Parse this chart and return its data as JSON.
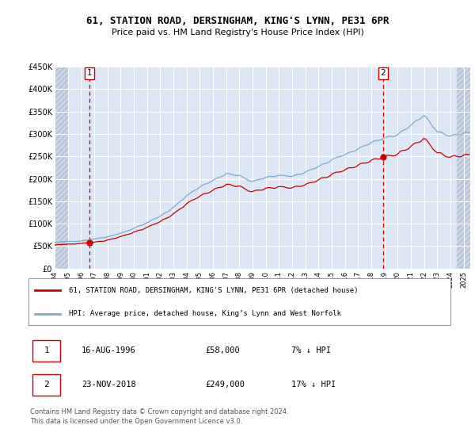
{
  "title1": "61, STATION ROAD, DERSINGHAM, KING'S LYNN, PE31 6PR",
  "title2": "Price paid vs. HM Land Registry's House Price Index (HPI)",
  "ylabel_ticks": [
    "£0",
    "£50K",
    "£100K",
    "£150K",
    "£200K",
    "£250K",
    "£300K",
    "£350K",
    "£400K",
    "£450K"
  ],
  "ytick_values": [
    0,
    50000,
    100000,
    150000,
    200000,
    250000,
    300000,
    350000,
    400000,
    450000
  ],
  "ylim": [
    0,
    450000
  ],
  "xlim_start": 1994.0,
  "xlim_end": 2025.5,
  "background_color": "#ffffff",
  "plot_bg_color": "#dce6f5",
  "hatch_bg_color": "#c8d4e8",
  "grid_color": "#ffffff",
  "red_line_color": "#cc0000",
  "blue_line_color": "#7aabcf",
  "dashed_red_color": "#cc0000",
  "marker1_x": 1996.62,
  "marker1_y": 58000,
  "marker2_x": 2018.9,
  "marker2_y": 249000,
  "annotation1": "1",
  "annotation2": "2",
  "legend_label1": "61, STATION ROAD, DERSINGHAM, KING'S LYNN, PE31 6PR (detached house)",
  "legend_label2": "HPI: Average price, detached house, King’s Lynn and West Norfolk",
  "table_row1": [
    "1",
    "16-AUG-1996",
    "£58,000",
    "7% ↓ HPI"
  ],
  "table_row2": [
    "2",
    "23-NOV-2018",
    "£249,000",
    "17% ↓ HPI"
  ],
  "footer": "Contains HM Land Registry data © Crown copyright and database right 2024.\nThis data is licensed under the Open Government Licence v3.0.",
  "xtick_years": [
    1994,
    1995,
    1996,
    1997,
    1998,
    1999,
    2000,
    2001,
    2002,
    2003,
    2004,
    2005,
    2006,
    2007,
    2008,
    2009,
    2010,
    2011,
    2012,
    2013,
    2014,
    2015,
    2016,
    2017,
    2018,
    2019,
    2020,
    2021,
    2022,
    2023,
    2024,
    2025
  ]
}
